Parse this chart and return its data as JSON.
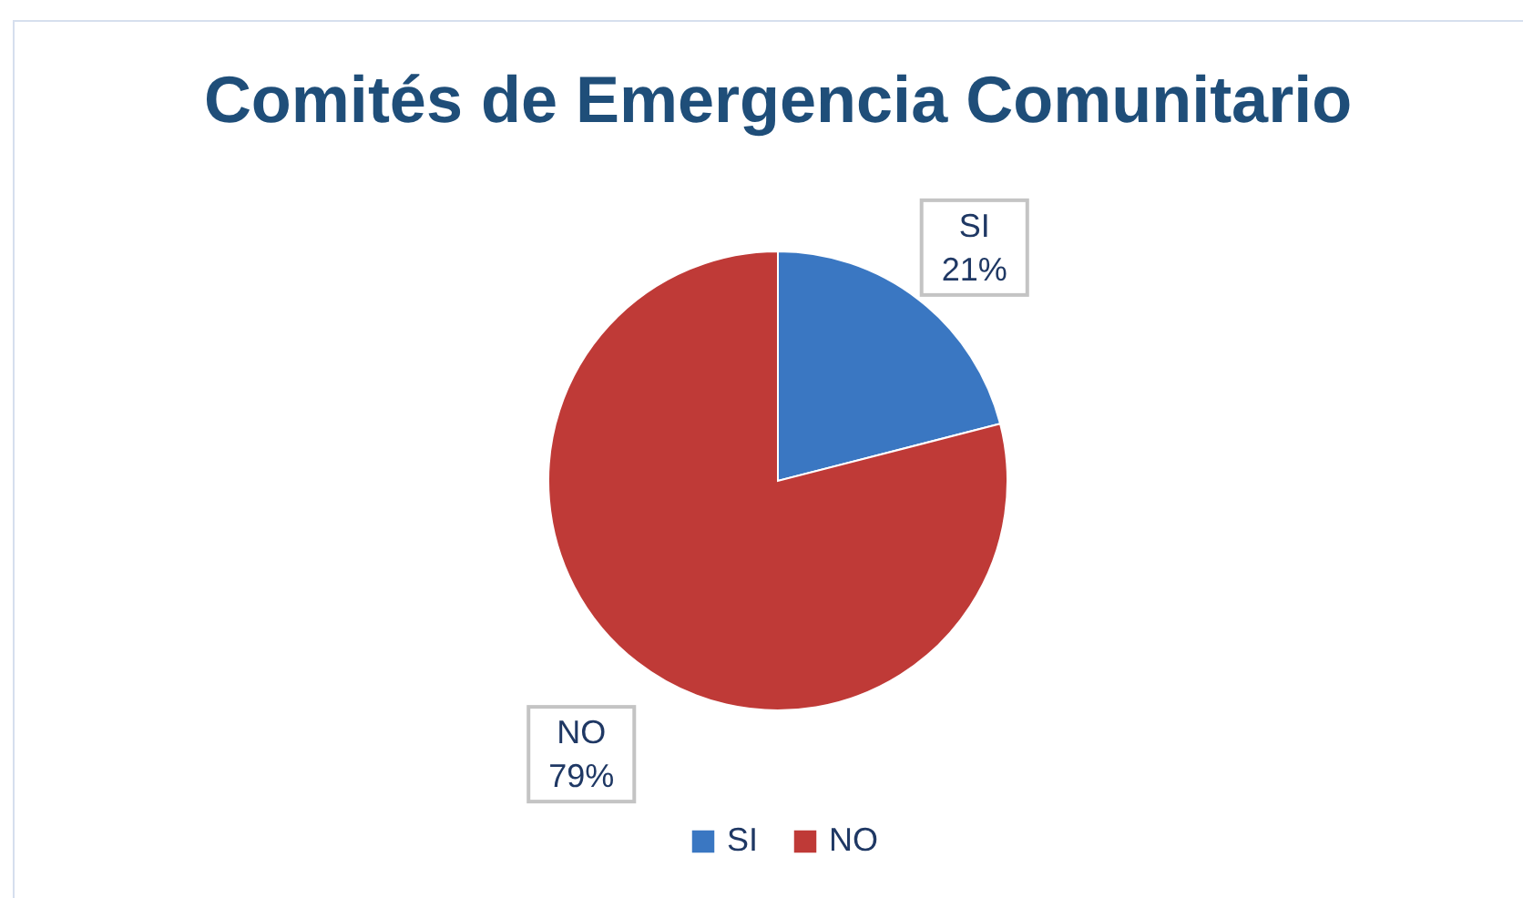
{
  "chart_data": {
    "type": "pie",
    "title": "Comités de Emergencia Comunitario",
    "categories": [
      "SI",
      "NO"
    ],
    "values": [
      21,
      79
    ],
    "colors": [
      "#3a77c2",
      "#bf3a37"
    ],
    "value_labels": [
      "21%",
      "79%"
    ],
    "legend": "bottom"
  }
}
